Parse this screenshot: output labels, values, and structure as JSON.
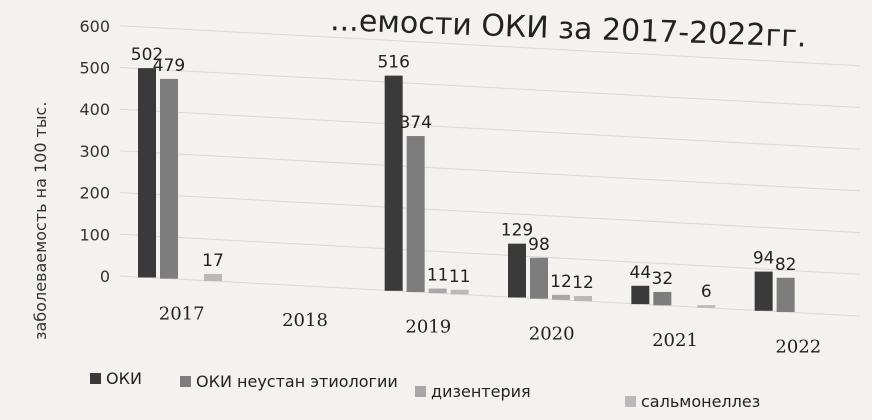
{
  "chart_data": {
    "type": "bar",
    "title": "...емости ОКИ за 2017-2022гг.",
    "ylabel": "заболеваемость на 100 тыс.",
    "xlabel": "",
    "ylim": [
      0,
      600
    ],
    "yticks": [
      0,
      100,
      200,
      300,
      400,
      500,
      600
    ],
    "grid": true,
    "legend_position": "bottom",
    "categories": [
      "2017",
      "2018",
      "2019",
      "2020",
      "2021",
      "2022"
    ],
    "series": [
      {
        "name": "ОКИ",
        "color": "#3a3a3a",
        "values": [
          502,
          null,
          516,
          129,
          44,
          94
        ],
        "labels": [
          "502",
          "",
          "516",
          "129",
          "44",
          "94"
        ]
      },
      {
        "name": "ОКИ неустан этиологии",
        "color": "#7d7d7d",
        "values": [
          479,
          null,
          374,
          98,
          32,
          82
        ],
        "labels": [
          "479",
          "",
          "374",
          "98",
          "32",
          "82"
        ]
      },
      {
        "name": "дизентерия",
        "color": "#a7a7a7",
        "values": [
          null,
          null,
          11,
          12,
          null,
          null
        ],
        "labels": [
          "",
          "",
          "11",
          "12",
          "",
          ""
        ]
      },
      {
        "name": "сальмонеллез",
        "color": "#b9b9b9",
        "values": [
          17,
          null,
          11,
          12,
          6,
          null
        ],
        "labels": [
          "17",
          "",
          "11",
          "12",
          "6",
          ""
        ]
      }
    ]
  }
}
